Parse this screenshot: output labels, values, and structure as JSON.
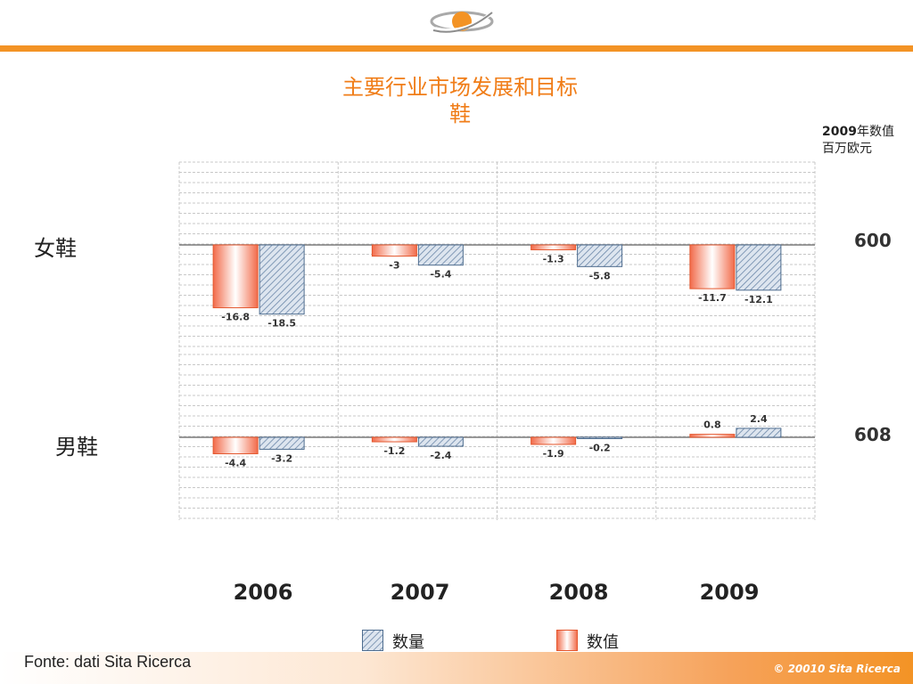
{
  "header": {
    "title_line1": "主要行业市场发展和目标",
    "title_line2": "鞋"
  },
  "unit": {
    "year": "2009",
    "line1_suffix": "年数值",
    "line2": "百万欧元"
  },
  "colors": {
    "accent": "#f39325",
    "value_bar_edge": "#e4572e",
    "quantity_bar_edge": "#4f6d8f",
    "grid": "#c8c8c8"
  },
  "chart_data": [
    {
      "type": "bar",
      "panel_label": "女鞋",
      "total_2009": "600",
      "categories": [
        "2006",
        "2007",
        "2008",
        "2009"
      ],
      "series": [
        {
          "name": "数值",
          "values": [
            -16.8,
            -3,
            -1.3,
            -11.7
          ]
        },
        {
          "name": "数量",
          "values": [
            -18.5,
            -5.4,
            -5.8,
            -12.1
          ]
        }
      ],
      "ylim": [
        -20,
        20
      ]
    },
    {
      "type": "bar",
      "panel_label": "男鞋",
      "total_2009": "608",
      "categories": [
        "2006",
        "2007",
        "2008",
        "2009"
      ],
      "series": [
        {
          "name": "数值",
          "values": [
            -4.4,
            -1.2,
            -1.9,
            0.8
          ]
        },
        {
          "name": "数量",
          "values": [
            -3.2,
            -2.4,
            -0.2,
            2.4
          ]
        }
      ],
      "ylim": [
        -20,
        20
      ]
    }
  ],
  "years": [
    "2006",
    "2007",
    "2008",
    "2009"
  ],
  "legend": {
    "quantity": "数量",
    "value": "数值"
  },
  "footer": {
    "source": "Fonte: dati Sita Ricerca",
    "copyright": "© 20010 Sita Ricerca"
  }
}
